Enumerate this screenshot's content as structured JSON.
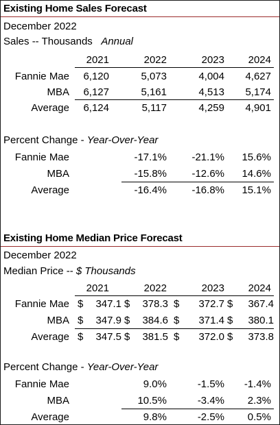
{
  "sales": {
    "title": "Existing Home Sales Forecast",
    "date": "December 2022",
    "units_prefix": "Sales -- Thousands",
    "units_suffix": "Annual",
    "years": [
      "2021",
      "2022",
      "2023",
      "2024"
    ],
    "rows": [
      {
        "label": "Fannie Mae",
        "values": [
          "6,120",
          "5,073",
          "4,004",
          "4,627"
        ]
      },
      {
        "label": "MBA",
        "values": [
          "6,127",
          "5,161",
          "4,513",
          "5,174"
        ]
      },
      {
        "label": "Average",
        "values": [
          "6,124",
          "5,117",
          "4,259",
          "4,901"
        ]
      }
    ],
    "pct_prefix": "Percent Change - ",
    "pct_suffix": "Year-Over-Year",
    "pct_rows": [
      {
        "label": "Fannie Mae",
        "values": [
          "-17.1%",
          "-21.1%",
          "15.6%"
        ]
      },
      {
        "label": "MBA",
        "values": [
          "-15.8%",
          "-12.6%",
          "14.6%"
        ]
      },
      {
        "label": "Average",
        "values": [
          "-16.4%",
          "-16.8%",
          "15.1%"
        ]
      }
    ]
  },
  "price": {
    "title": "Existing Home Median Price Forecast",
    "date": "December  2022",
    "units_prefix": "Median Price -- ",
    "units_suffix": "$ Thousands",
    "years": [
      "2021",
      "2022",
      "2023",
      "2024"
    ],
    "currency": "$",
    "rows": [
      {
        "label": "Fannie Mae",
        "values": [
          "347.1",
          "378.3",
          "372.7",
          "367.4"
        ]
      },
      {
        "label": "MBA",
        "values": [
          "347.9",
          "384.6",
          "371.4",
          "380.1"
        ]
      },
      {
        "label": "Average",
        "values": [
          "347.5",
          "381.5",
          "372.0",
          "373.8"
        ]
      }
    ],
    "pct_prefix": "Percent Change - ",
    "pct_suffix": "Year-Over-Year",
    "pct_rows": [
      {
        "label": "Fannie Mae",
        "values": [
          "9.0%",
          "-1.5%",
          "-1.4%"
        ]
      },
      {
        "label": "MBA",
        "values": [
          "10.5%",
          "-3.4%",
          "2.3%"
        ]
      },
      {
        "label": "Average",
        "values": [
          "9.8%",
          "-2.5%",
          "0.5%"
        ]
      }
    ]
  }
}
